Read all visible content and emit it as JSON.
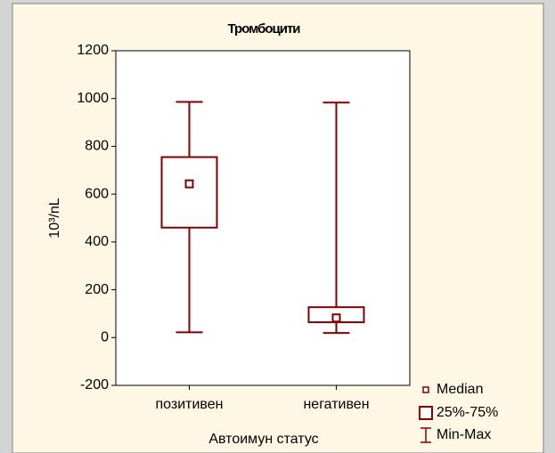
{
  "chart_data": {
    "type": "box",
    "title": "Тромбоцити",
    "x_label": "Автоимун статус",
    "y_label": "10³/nL",
    "categories": [
      "позитивен",
      "негативен"
    ],
    "min": [
      22,
      19
    ],
    "q1": [
      460,
      64
    ],
    "median": [
      643,
      82
    ],
    "q3": [
      755,
      127
    ],
    "max": [
      986,
      983
    ],
    "color": "#800000",
    "ylim": [
      -200,
      1200
    ],
    "yticks": [
      -200,
      0,
      200,
      400,
      600,
      800,
      1000,
      1200
    ],
    "legend": [
      "Median",
      "25%-75%",
      "Min-Max"
    ],
    "legend_position": "lower right"
  }
}
